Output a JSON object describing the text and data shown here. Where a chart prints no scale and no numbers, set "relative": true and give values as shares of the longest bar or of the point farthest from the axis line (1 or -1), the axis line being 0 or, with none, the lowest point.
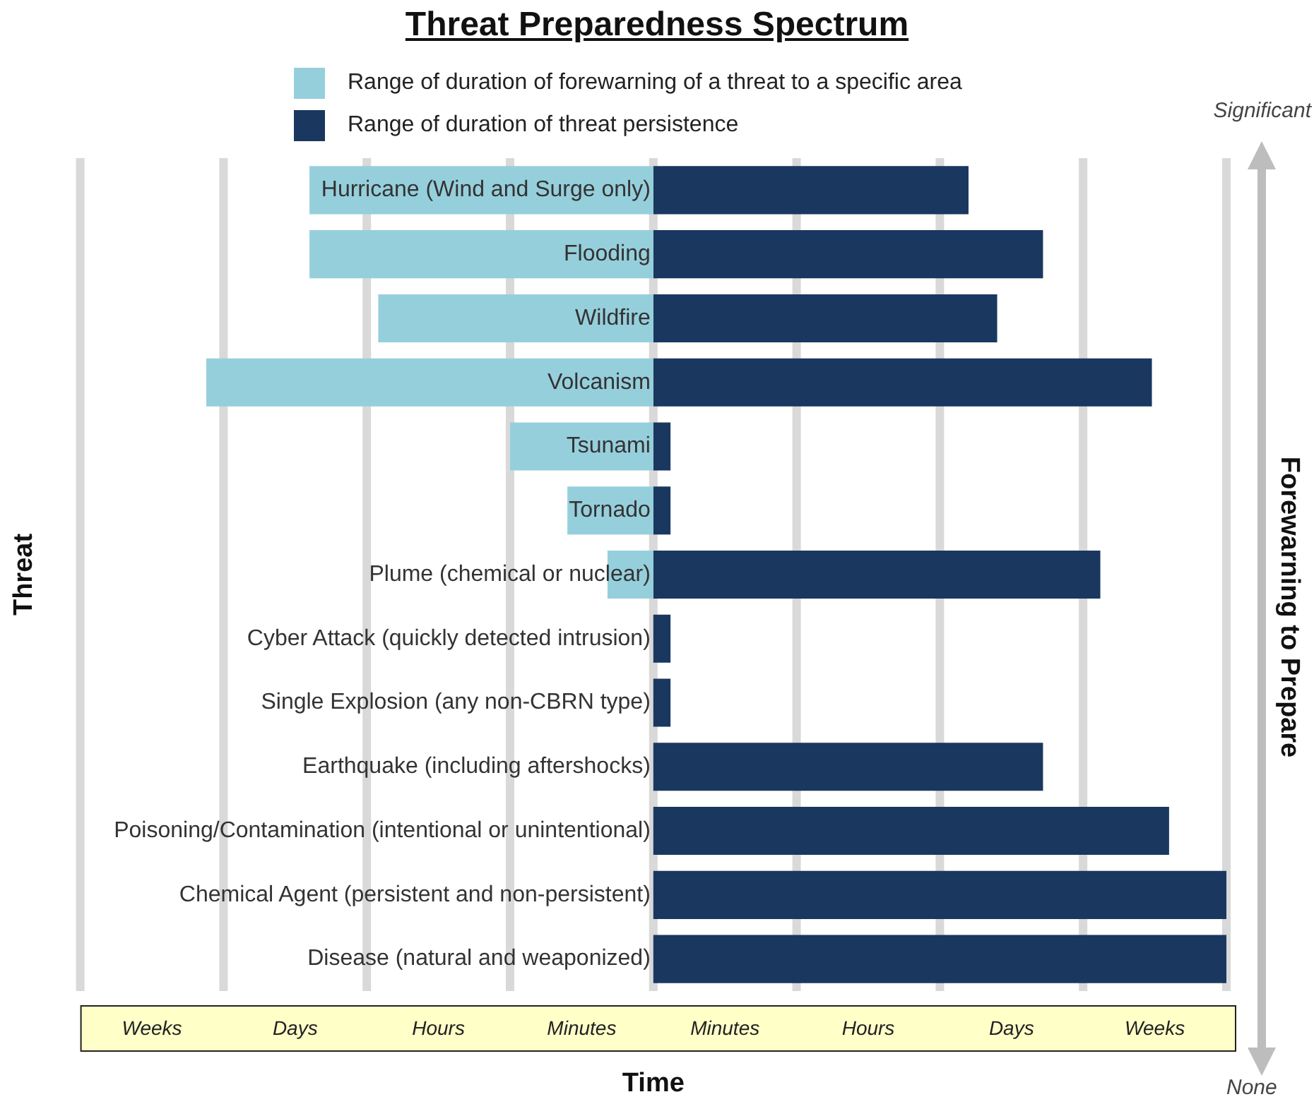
{
  "chart_data": {
    "type": "bar",
    "orientation": "horizontal",
    "stacked": true,
    "relative": true,
    "title": "Threat Preparedness Spectrum",
    "xlabel": "Time",
    "ylabel": "Threat",
    "y2label": "Forewarning to Prepare",
    "annotations": [
      "Significant",
      "None",
      "Weeks",
      "Days",
      "Hours",
      "Minutes",
      "Minutes",
      "Hours",
      "Days",
      "Weeks"
    ],
    "categories": [
      "Hurricane (Wind and Surge only)",
      "Flooding",
      "Wildfire",
      "Volcanism",
      "Tsunami",
      "Tornado",
      "Plume (chemical or nuclear)",
      "Cyber Attack (quickly detected intrusion)",
      "Single Explosion (any non-CBRN type)",
      "Earthquake (including aftershocks)",
      "Poisoning/Contamination (intentional or unintentional)",
      "Chemical Agent (persistent and non-persistent)",
      "Disease (natural and weaponized)"
    ],
    "series": [
      {
        "name": "Range of duration of forewarning of a threat to a specific area",
        "color": "#96cfdc",
        "values": [
          -0.6,
          -0.6,
          -0.48,
          -0.78,
          -0.25,
          -0.15,
          -0.08,
          null,
          null,
          null,
          null,
          null,
          null
        ]
      },
      {
        "name": "Range of duration of threat persistence",
        "color": "#1a375f",
        "values": [
          0.55,
          0.68,
          0.6,
          0.87,
          0.03,
          0.03,
          0.78,
          0.03,
          0.03,
          0.68,
          0.9,
          1,
          1
        ]
      }
    ],
    "grid": "x",
    "legend": "top"
  }
}
